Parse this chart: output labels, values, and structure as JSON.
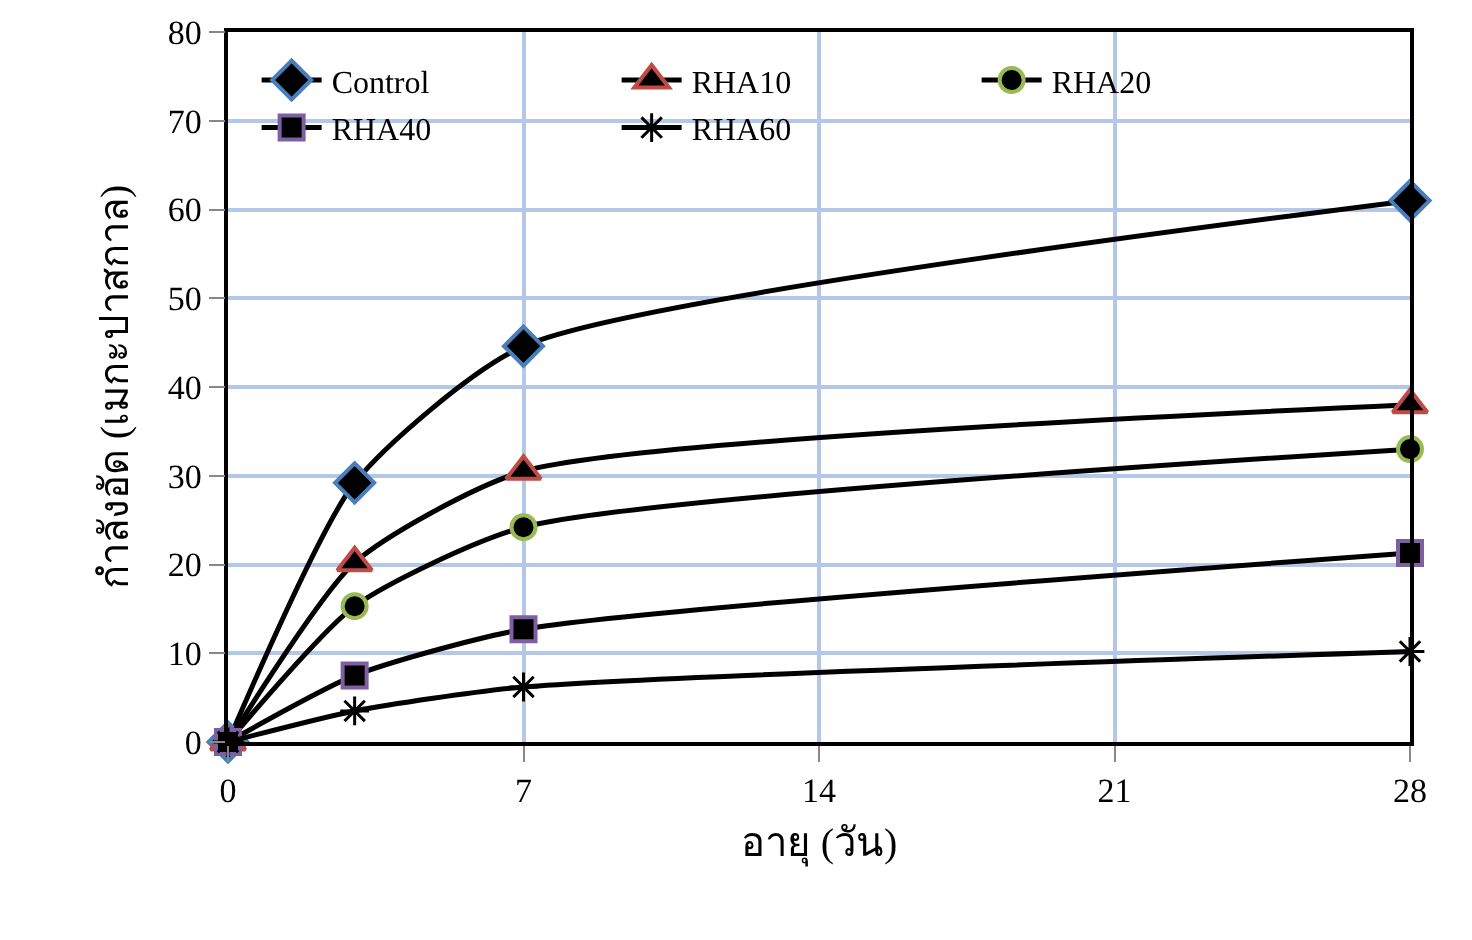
{
  "chart_data": {
    "type": "line",
    "xlabel": "อายุ (วัน)",
    "ylabel": "กำลังอัด (เมกะปาสกาล)",
    "x": [
      0,
      3,
      7,
      28
    ],
    "series": [
      {
        "name": "Control",
        "color": "#000000",
        "colors": [
          "#4a7ebb",
          "#4a7ebb",
          "#4a7ebb",
          "#4a7ebb"
        ],
        "marker": "diamond",
        "values": [
          0,
          29.2,
          44.6,
          61
        ]
      },
      {
        "name": "RHA10",
        "color": "#000000",
        "colors": [
          "#be4b48",
          "#be4b48",
          "#be4b48",
          "#be4b48"
        ],
        "marker": "triangle",
        "values": [
          0,
          20.2,
          30.5,
          38
        ]
      },
      {
        "name": "RHA20",
        "color": "#000000",
        "colors": [
          "#98b954",
          "#98b954",
          "#98b954",
          "#98b954"
        ],
        "marker": "circle",
        "values": [
          0,
          15.3,
          24.2,
          33
        ]
      },
      {
        "name": "RHA40",
        "color": "#000000",
        "colors": [
          "#7d60a0",
          "#7d60a0",
          "#7d60a0",
          "#7d60a0"
        ],
        "marker": "square",
        "values": [
          0,
          7.5,
          12.7,
          21.3
        ]
      },
      {
        "name": "RHA60",
        "color": "#000000",
        "marker": "cross",
        "values": [
          0,
          3.5,
          6.2,
          10.2
        ]
      }
    ],
    "xlim": [
      0,
      28
    ],
    "xticks": [
      0,
      7,
      14,
      21,
      28
    ],
    "ylim": [
      0,
      80
    ],
    "yticks": [
      0,
      10,
      20,
      30,
      40,
      50,
      60,
      70,
      80
    ],
    "grid": true,
    "legend": "top left",
    "line_style": "solid"
  }
}
